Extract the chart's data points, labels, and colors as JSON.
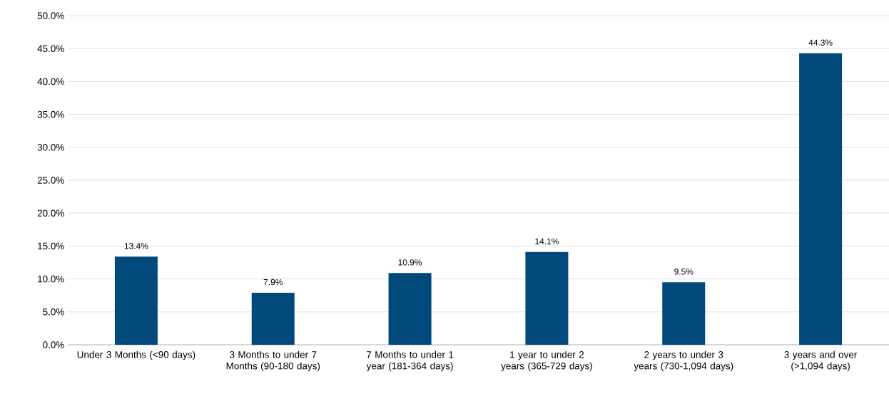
{
  "chart_data": {
    "type": "bar",
    "categories": [
      "Under 3 Months (<90 days)",
      "3 Months to under 7 Months (90-180 days)",
      "7 Months to under 1 year (181-364 days)",
      "1 year to under 2 years (365-729 days)",
      "2 years to under 3 years (730-1,094 days)",
      "3 years and over (>1,094 days)"
    ],
    "values": [
      13.4,
      7.9,
      10.9,
      14.1,
      9.5,
      44.3
    ],
    "value_labels": [
      "13.4%",
      "7.9%",
      "10.9%",
      "14.1%",
      "9.5%",
      "44.3%"
    ],
    "color": "#00497a",
    "ylim": [
      0,
      50
    ],
    "yticks": [
      {
        "value": 0,
        "label": "0.0%"
      },
      {
        "value": 5,
        "label": "5.0%"
      },
      {
        "value": 10,
        "label": "10.0%"
      },
      {
        "value": 15,
        "label": "15.0%"
      },
      {
        "value": 20,
        "label": "20.0%"
      },
      {
        "value": 25,
        "label": "25.0%"
      },
      {
        "value": 30,
        "label": "30.0%"
      },
      {
        "value": 35,
        "label": "35.0%"
      },
      {
        "value": 40,
        "label": "40.0%"
      },
      {
        "value": 45,
        "label": "45.0%"
      },
      {
        "value": 50,
        "label": "50.0%"
      }
    ],
    "grid": "y"
  }
}
